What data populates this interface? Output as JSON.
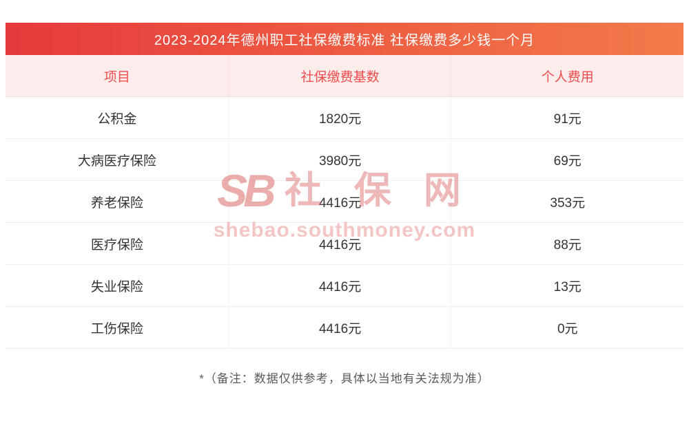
{
  "chart_data": {
    "type": "table",
    "title": "2023-2024年德州职工社保缴费标准 社保缴费多少钱一个月",
    "columns": [
      "项目",
      "社保缴费基数",
      "个人费用"
    ],
    "rows": [
      [
        "公积金",
        "1820元",
        "91元"
      ],
      [
        "大病医疗保险",
        "3980元",
        "69元"
      ],
      [
        "养老保险",
        "4416元",
        "353元"
      ],
      [
        "医疗保险",
        "4416元",
        "88元"
      ],
      [
        "失业保险",
        "4416元",
        "13元"
      ],
      [
        "工伤保险",
        "4416元",
        "0元"
      ]
    ]
  },
  "note": "*（备注：数据仅供参考，具体以当地有关法规为准）",
  "watermark": {
    "logo": "SB",
    "logo_text": "社 保 网",
    "url": "shebao.southmoney.com"
  },
  "colors": {
    "title_gradient_left": "#e63a3c",
    "title_gradient_right": "#f37a4a",
    "header_bg": "#fdecec",
    "header_text": "#f04c4c",
    "body_text": "#333333",
    "row_border": "#f0f0f0",
    "note_text": "#595959",
    "watermark_pink": "#e99696"
  }
}
